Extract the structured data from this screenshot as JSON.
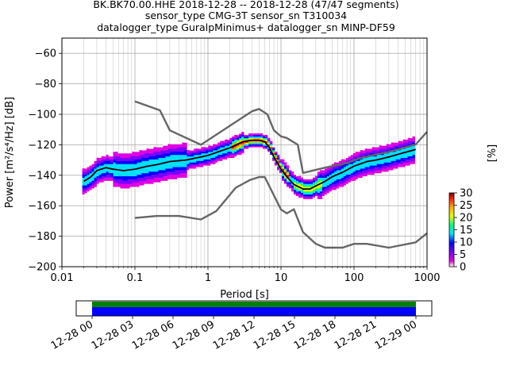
{
  "title": {
    "line1": "BK.BK70.00.HHE   2018-12-28 -- 2018-12-28  (47/47 segments)",
    "line2": "sensor_type CMG-3T sensor_sn T310034",
    "line3": "datalogger_type GuralpMinimus+ datalogger_sn MINP-DF59"
  },
  "chart_data": {
    "type": "heatmap",
    "xlabel": "Period [s]",
    "ylabel": "Power [m²/s⁴/Hz] [dB]",
    "x_scale": "log",
    "xlim": [
      0.01,
      1000
    ],
    "ylim": [
      -200,
      -50
    ],
    "xticks": [
      0.01,
      0.1,
      1,
      10,
      100,
      1000
    ],
    "xtick_labels": [
      "0.01",
      "0.1",
      "1",
      "10",
      "100",
      "1000"
    ],
    "yticks": [
      -200,
      -180,
      -160,
      -140,
      -120,
      -100,
      -80,
      -60
    ],
    "grid": true,
    "colorbar": {
      "label": "[%]",
      "range": [
        0,
        30
      ],
      "ticks": [
        0,
        5,
        10,
        15,
        20,
        25,
        30
      ]
    },
    "series": [
      {
        "name": "",
        "color": "#666666",
        "x": [
          0.1,
          0.22,
          0.3,
          0.8,
          4,
          5,
          6.5,
          8,
          10,
          12,
          17,
          20,
          40,
          80,
          120,
          200,
          300,
          400,
          700,
          1000
        ],
        "y": [
          -91.5,
          -97.4,
          -110.5,
          -120,
          -98,
          -96.5,
          -100,
          -110.5,
          -114.5,
          -115.5,
          -120,
          -138.5,
          -135,
          -132,
          -128.8,
          -126.4,
          -124.7,
          -123,
          -119.8,
          -111.5
        ]
      },
      {
        "name": "",
        "color": "#666666",
        "x": [
          0.1,
          0.2,
          0.4,
          0.8,
          1.3,
          2.4,
          3.8,
          5,
          6,
          10,
          12,
          15,
          20,
          30,
          40,
          70,
          100,
          150,
          300,
          700,
          1000
        ],
        "y": [
          -168,
          -166.7,
          -166.7,
          -169,
          -163.5,
          -148.2,
          -143,
          -141.2,
          -141.2,
          -162.5,
          -165,
          -162.3,
          -177.3,
          -185,
          -187.5,
          -187.5,
          -185,
          -185,
          -187.5,
          -184,
          -178
        ]
      },
      {
        "name": "",
        "color": "#000000",
        "x": [
          0.02,
          0.025,
          0.03,
          0.04,
          0.05,
          0.07,
          0.1,
          0.15,
          0.2,
          0.3,
          0.5,
          0.8,
          1,
          1.5,
          2,
          3,
          4,
          5,
          6,
          7,
          8,
          10,
          12,
          15,
          20,
          25,
          30,
          40,
          50,
          70,
          100,
          150,
          200,
          300,
          500,
          700
        ],
        "y": [
          -144,
          -141,
          -137,
          -135,
          -136,
          -137,
          -136,
          -134,
          -133,
          -131,
          -130,
          -128,
          -127,
          -124,
          -122,
          -118,
          -117,
          -117,
          -118,
          -122,
          -128,
          -136,
          -141,
          -146,
          -149,
          -149,
          -147,
          -144,
          -141,
          -138,
          -134,
          -131,
          -130,
          -128,
          -125,
          -123
        ]
      }
    ],
    "time_axis": {
      "tick_labels": [
        "12-28 00",
        "12-28 03",
        "12-28 06",
        "12-28 09",
        "12-28 12",
        "12-28 15",
        "12-28 18",
        "12-28 21",
        "12-29 00"
      ],
      "coverage": [
        {
          "start": 0,
          "end": 24,
          "colors": [
            "#008000",
            "#0000ff"
          ]
        }
      ]
    }
  }
}
